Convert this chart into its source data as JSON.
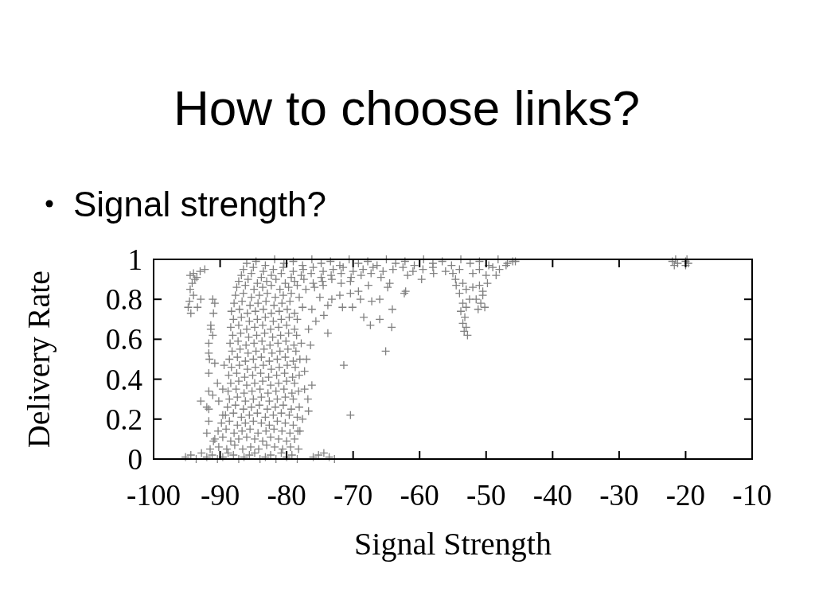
{
  "chart_data": {
    "type": "scatter",
    "title": "How to choose links?",
    "subtitle": "Signal strength?",
    "xlabel": "Signal Strength",
    "ylabel": "Delivery Rate",
    "color": "#808080",
    "marker": "cross",
    "xlim": [
      -100,
      -10
    ],
    "ylim": [
      0,
      1
    ],
    "xticks": [
      -100,
      -90,
      -80,
      -70,
      -60,
      -50,
      -40,
      -30,
      -20,
      -10
    ],
    "yticks": [
      0,
      0.2,
      0.4,
      0.6,
      0.8,
      1
    ],
    "x": [
      -95.2,
      -94.4,
      -93.6,
      -92.8,
      -92,
      -91.2,
      -90.4,
      -89.6,
      -88.8,
      -88,
      -87.2,
      -86.4,
      -85.6,
      -84.8,
      -84,
      -83.2,
      -82.4,
      -81.6,
      -80.8,
      -80,
      -79.2,
      -78.4,
      -76,
      -75.2,
      -74.4,
      -73.6,
      -72.8,
      -91.5,
      -90.2,
      -89,
      -87.8,
      -86.6,
      -85.4,
      -84.2,
      -83,
      -81.8,
      -80.6,
      -79.4,
      -78.2,
      -90.8,
      -89.6,
      -88.4,
      -87.2,
      -86,
      -84.8,
      -83.6,
      -82.4,
      -81.2,
      -80,
      -78.8,
      -90.3,
      -89.1,
      -87.9,
      -86.7,
      -85.5,
      -84.3,
      -83.1,
      -81.9,
      -80.7,
      -79.5,
      -78.3,
      -89.8,
      -88.6,
      -87.4,
      -86.2,
      -85,
      -83.8,
      -82.6,
      -81.4,
      -80.2,
      -79,
      -89.2,
      -88,
      -86.8,
      -85.6,
      -84.4,
      -83.2,
      -82,
      -80.8,
      -79.6,
      -78.4,
      -88.9,
      -87.7,
      -86.5,
      -85.3,
      -84.1,
      -82.9,
      -81.7,
      -80.5,
      -79.3,
      -78.1,
      -88.6,
      -87.4,
      -86.2,
      -85,
      -83.8,
      -82.6,
      -81.4,
      -80.2,
      -79,
      -88.8,
      -87.6,
      -86.4,
      -85.2,
      -84,
      -82.8,
      -81.6,
      -80.4,
      -79.2,
      -78.2,
      -88.4,
      -87.2,
      -86,
      -84.8,
      -83.6,
      -82.4,
      -81.2,
      -80,
      -78.8,
      -88.7,
      -87.5,
      -86.3,
      -85.1,
      -83.9,
      -82.7,
      -81.5,
      -80.3,
      -79.1,
      -78.1,
      -88.3,
      -87.1,
      -85.9,
      -84.7,
      -83.5,
      -82.3,
      -81.1,
      -79.9,
      -78.7,
      -88.6,
      -87.4,
      -86.2,
      -85,
      -83.8,
      -82.6,
      -81.4,
      -80.2,
      -79,
      -78,
      -88.2,
      -87,
      -85.8,
      -84.6,
      -83.4,
      -82.2,
      -81,
      -79.8,
      -78.6,
      -88.5,
      -87.3,
      -86.1,
      -84.9,
      -83.7,
      -82.5,
      -81.3,
      -80.1,
      -78.9,
      -77.8,
      -88.1,
      -86.9,
      -85.7,
      -84.5,
      -83.3,
      -82.1,
      -80.9,
      -79.7,
      -78.5,
      -88.4,
      -87.2,
      -86,
      -84.8,
      -83.6,
      -82.4,
      -81.2,
      -80,
      -78.8,
      -88,
      -86.8,
      -85.6,
      -84.4,
      -83.2,
      -82,
      -80.8,
      -79.6,
      -78.4,
      -88.3,
      -87.1,
      -85.9,
      -84.7,
      -83.5,
      -82.3,
      -81.1,
      -79.9,
      -78.8,
      -87.9,
      -86.7,
      -85.5,
      -84.3,
      -83.1,
      -81.9,
      -80.7,
      -79.5,
      -87.7,
      -86.5,
      -85.3,
      -84.1,
      -82.9,
      -81.7,
      -80.5,
      -79.3,
      -78.1,
      -87.5,
      -86.2,
      -84.9,
      -83.6,
      -82.3,
      -81,
      -79.7,
      -78.4,
      -77.1,
      -75.8,
      -74.5,
      -87.2,
      -85.8,
      -84.4,
      -83,
      -81.6,
      -80.2,
      -78.8,
      -77.4,
      -76,
      -74.6,
      -73.2,
      -71.8,
      -70.4,
      -86.8,
      -85.3,
      -83.8,
      -82.3,
      -80.8,
      -79.3,
      -77.8,
      -76.3,
      -74.8,
      -73.3,
      -71.8,
      -70.3,
      -68.8,
      -67.3,
      -65.8,
      -86.5,
      -85,
      -83.5,
      -82,
      -80.5,
      -79,
      -77.5,
      -76,
      -74.5,
      -73,
      -71.5,
      -70,
      -68.5,
      -67,
      -65.5,
      -64,
      -62.5,
      -61,
      -59.5,
      -58,
      -86,
      -84.6,
      -83.2,
      -81.8,
      -80.4,
      -79,
      -77.6,
      -76.2,
      -74.8,
      -73.4,
      -72,
      -70.6,
      -69.2,
      -67.8,
      -66.4,
      -65,
      -63.6,
      -62.2,
      -60.8,
      -59.4,
      -58,
      -56.6,
      -55.2,
      -53.8,
      -52.4,
      -51,
      -49.6,
      -48.2,
      -46.8,
      -45.6,
      -94.5,
      -94,
      -93.5,
      -93,
      -92.3,
      -94.2,
      -94.5,
      -94,
      -94.6,
      -94.4,
      -93.4,
      -92.9,
      -93.8,
      -94.8,
      -91.1,
      -90.8,
      -91,
      -91.4,
      -91.4,
      -91.1,
      -91.7,
      -91.7,
      -91.6,
      -91.7,
      -90.4,
      -89.6,
      -91.7,
      -91.1,
      -92.9,
      -90.2,
      -92,
      -91.7,
      -91.7,
      -92,
      -91,
      -89.6,
      -89.4,
      -90.8,
      -77.6,
      -76.2,
      -73.8,
      -71.6,
      -70.1,
      -68.4,
      -66,
      -67.4,
      -64.2,
      -64.1,
      -65.1,
      -71.4,
      -70.4,
      -73.8,
      -76.4,
      -75.6,
      -76.7,
      -74.4,
      -77,
      -77.3,
      -76.2,
      -76.8,
      -76.7,
      -77.3,
      -77.6,
      -78,
      -72,
      -70.4,
      -68.9,
      -67.2,
      -66,
      -64.5,
      -67.7,
      -69.2,
      -73.2,
      -64.8,
      -75,
      -61.8,
      -62.1,
      -62.3,
      -59.7,
      -57.9,
      -56.1,
      -54.6,
      -48.5,
      -53.5,
      -53,
      -54,
      -52.5,
      -53.5,
      -53,
      -53.8,
      -53.2,
      -53.5,
      -53,
      -53.3,
      -52.8,
      -54.5,
      -52,
      -51,
      -50.5,
      -51.5,
      -50.8,
      -50.2,
      -51.2,
      -50.5,
      -49.8,
      -55,
      -54,
      -52,
      -51,
      -50,
      -49,
      -48,
      -47,
      -46,
      -22,
      -21.5,
      -21.7,
      -21.2,
      -20,
      -19.8,
      -20,
      -19.6
    ],
    "values": [
      0.01,
      0.02,
      0,
      0.03,
      0.01,
      0.02,
      0,
      0.01,
      0.03,
      0.02,
      0,
      0.01,
      0.02,
      0.03,
      0,
      0.01,
      0.02,
      0,
      0.03,
      0.01,
      0.02,
      0,
      0.01,
      0.02,
      0.03,
      0.01,
      0,
      0.05,
      0.06,
      0.05,
      0.07,
      0.05,
      0.06,
      0.05,
      0.07,
      0.06,
      0.05,
      0.06,
      0.05,
      0.1,
      0.11,
      0.09,
      0.1,
      0.11,
      0.1,
      0.09,
      0.11,
      0.1,
      0.09,
      0.1,
      0.14,
      0.15,
      0.13,
      0.14,
      0.15,
      0.13,
      0.14,
      0.15,
      0.14,
      0.13,
      0.14,
      0.18,
      0.19,
      0.17,
      0.18,
      0.19,
      0.18,
      0.17,
      0.19,
      0.18,
      0.17,
      0.22,
      0.23,
      0.21,
      0.22,
      0.23,
      0.21,
      0.22,
      0.23,
      0.22,
      0.21,
      0.26,
      0.27,
      0.25,
      0.26,
      0.27,
      0.25,
      0.26,
      0.27,
      0.25,
      0.26,
      0.3,
      0.31,
      0.29,
      0.3,
      0.31,
      0.29,
      0.3,
      0.31,
      0.3,
      0.34,
      0.35,
      0.33,
      0.34,
      0.35,
      0.33,
      0.34,
      0.35,
      0.33,
      0.34,
      0.38,
      0.39,
      0.37,
      0.38,
      0.39,
      0.37,
      0.38,
      0.39,
      0.38,
      0.42,
      0.43,
      0.41,
      0.42,
      0.43,
      0.41,
      0.42,
      0.43,
      0.41,
      0.42,
      0.46,
      0.47,
      0.45,
      0.46,
      0.47,
      0.45,
      0.46,
      0.47,
      0.46,
      0.5,
      0.51,
      0.49,
      0.5,
      0.51,
      0.49,
      0.5,
      0.51,
      0.49,
      0.5,
      0.54,
      0.55,
      0.53,
      0.54,
      0.55,
      0.53,
      0.54,
      0.55,
      0.54,
      0.58,
      0.59,
      0.57,
      0.58,
      0.59,
      0.57,
      0.58,
      0.59,
      0.57,
      0.58,
      0.62,
      0.63,
      0.61,
      0.62,
      0.63,
      0.61,
      0.62,
      0.63,
      0.62,
      0.66,
      0.67,
      0.65,
      0.66,
      0.67,
      0.65,
      0.66,
      0.67,
      0.65,
      0.7,
      0.71,
      0.69,
      0.7,
      0.71,
      0.69,
      0.7,
      0.71,
      0.7,
      0.74,
      0.75,
      0.73,
      0.74,
      0.75,
      0.73,
      0.74,
      0.75,
      0.73,
      0.78,
      0.79,
      0.77,
      0.78,
      0.79,
      0.77,
      0.78,
      0.79,
      0.82,
      0.83,
      0.81,
      0.82,
      0.83,
      0.81,
      0.82,
      0.83,
      0.81,
      0.86,
      0.87,
      0.85,
      0.86,
      0.87,
      0.85,
      0.86,
      0.87,
      0.85,
      0.86,
      0.87,
      0.89,
      0.9,
      0.88,
      0.89,
      0.9,
      0.88,
      0.89,
      0.9,
      0.88,
      0.89,
      0.9,
      0.88,
      0.89,
      0.92,
      0.93,
      0.91,
      0.92,
      0.93,
      0.91,
      0.92,
      0.93,
      0.91,
      0.92,
      0.93,
      0.91,
      0.92,
      0.93,
      0.91,
      0.95,
      0.96,
      0.94,
      0.95,
      0.96,
      0.94,
      0.95,
      0.96,
      0.94,
      0.95,
      0.96,
      0.94,
      0.95,
      0.96,
      0.94,
      0.95,
      0.96,
      0.94,
      0.95,
      0.96,
      0.98,
      0.99,
      0.97,
      1,
      0.98,
      0.99,
      0.97,
      1,
      0.98,
      0.99,
      0.97,
      1,
      0.98,
      0.99,
      0.97,
      1,
      0.98,
      0.99,
      0.97,
      1,
      0.98,
      0.99,
      0.97,
      1,
      0.98,
      0.99,
      0.97,
      1,
      0.98,
      0.99,
      0.92,
      0.93,
      0.91,
      0.94,
      0.95,
      0.88,
      0.85,
      0.82,
      0.79,
      0.73,
      0.76,
      0.8,
      0.9,
      0.76,
      0.8,
      0.78,
      0.73,
      0.67,
      0.65,
      0.62,
      0.58,
      0.53,
      0.5,
      0.43,
      0.38,
      0.35,
      0.34,
      0.32,
      0.29,
      0.29,
      0.26,
      0.25,
      0.19,
      0.13,
      0.09,
      0.22,
      0.47,
      0.48,
      0.76,
      0.75,
      0.77,
      0.76,
      0.76,
      0.71,
      0.7,
      0.67,
      0.66,
      0.75,
      0.54,
      0.47,
      0.22,
      0.63,
      0.57,
      0.69,
      0.65,
      0.72,
      0.5,
      0.44,
      0.37,
      0.3,
      0.24,
      0.35,
      0.2,
      0.14,
      0.82,
      0.83,
      0.8,
      0.79,
      0.8,
      0.88,
      0.87,
      0.84,
      0.8,
      0.86,
      0.81,
      0.92,
      0.84,
      0.83,
      0.9,
      0.93,
      0.94,
      0.9,
      0.92,
      0.88,
      0.85,
      0.83,
      0.8,
      0.78,
      0.76,
      0.74,
      0.71,
      0.68,
      0.66,
      0.64,
      0.62,
      0.87,
      0.86,
      0.87,
      0.84,
      0.8,
      0.78,
      0.76,
      0.75,
      0.82,
      0.88,
      0.93,
      0.95,
      0.93,
      0.95,
      0.92,
      0.96,
      0.95,
      0.97,
      0.99,
      0.99,
      1,
      0.97,
      0.98,
      0.99,
      1,
      0.97,
      0.98
    ]
  }
}
